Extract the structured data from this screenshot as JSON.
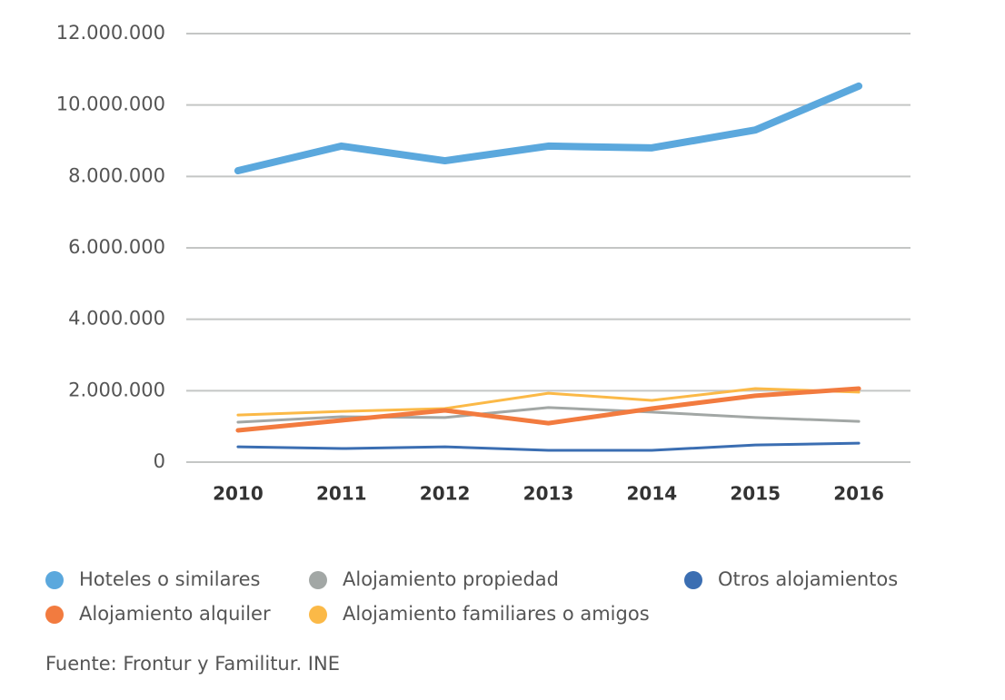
{
  "chart_data": {
    "type": "line",
    "categories": [
      "2010",
      "2011",
      "2012",
      "2013",
      "2014",
      "2015",
      "2016"
    ],
    "series": [
      {
        "name": "Hoteles o similares",
        "color": "#5ba8dd",
        "values": [
          8160000,
          8850000,
          8440000,
          8850000,
          8800000,
          9300000,
          10530000
        ]
      },
      {
        "name": "Alojamiento propiedad",
        "color": "#a2a7a5",
        "values": [
          1120000,
          1270000,
          1250000,
          1530000,
          1400000,
          1250000,
          1140000
        ]
      },
      {
        "name": "Otros alojamientos",
        "color": "#3b6eb2",
        "values": [
          430000,
          380000,
          430000,
          330000,
          330000,
          480000,
          530000
        ]
      },
      {
        "name": "Alojamiento alquiler",
        "color": "#f27b3f",
        "values": [
          890000,
          1170000,
          1450000,
          1090000,
          1500000,
          1860000,
          2060000
        ]
      },
      {
        "name": "Alojamiento familiares o amigos",
        "color": "#fbb947",
        "values": [
          1320000,
          1420000,
          1500000,
          1930000,
          1730000,
          2060000,
          1960000
        ]
      }
    ],
    "ylim": [
      0,
      12000000
    ],
    "yticks": [
      0,
      {
        "value": 2000000,
        "label": "2.000.000"
      },
      {
        "value": 4000000,
        "label": "4.000.000"
      },
      {
        "value": 6000000,
        "label": "6.000.000"
      },
      {
        "value": 8000000,
        "label": "8.000.000"
      },
      {
        "value": 10000000,
        "label": "10.000.000"
      },
      {
        "value": 12000000,
        "label": "12.000.000"
      }
    ],
    "grid": true,
    "source": "Fuente: Frontur y Familitur. INE"
  }
}
